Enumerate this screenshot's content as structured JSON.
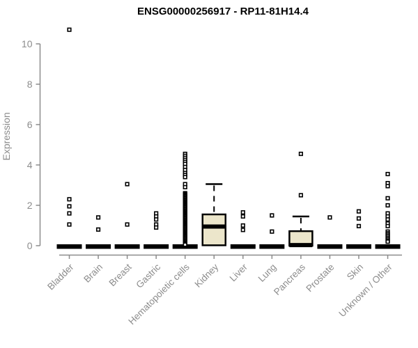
{
  "chart_data": {
    "type": "boxplot",
    "title": "ENSG00000256917 - RP11-81H14.4",
    "ylabel": "Expression",
    "xlabel": "",
    "ylim": [
      0,
      10
    ],
    "yticks": [
      0,
      2,
      4,
      6,
      8,
      10
    ],
    "grid": false,
    "legend": "none",
    "colors": {
      "box_fill": "#ece6cb",
      "box_stroke": "#000000",
      "median": "#000000",
      "outlier_stroke": "#000000",
      "outlier_fill": "#ffffff",
      "axis": "#8c8c8c",
      "tick_label": "#8c8c8c",
      "title": "#000000",
      "background": "#ffffff"
    },
    "categories": [
      "Bladder",
      "Brain",
      "Breast",
      "Gastric",
      "Hematopoietic cells",
      "Kidney",
      "Liver",
      "Lung",
      "Pancreas",
      "Prostate",
      "Skin",
      "Unknown / Other"
    ],
    "series": [
      {
        "category": "Bladder",
        "box": {
          "q1": 0,
          "median": 0,
          "q3": 0
        },
        "outliers": [
          10.7,
          2.3,
          1.95,
          1.6,
          1.05
        ]
      },
      {
        "category": "Brain",
        "box": {
          "q1": 0,
          "median": 0,
          "q3": 0
        },
        "outliers": [
          1.4,
          0.8
        ]
      },
      {
        "category": "Breast",
        "box": {
          "q1": 0,
          "median": 0,
          "q3": 0
        },
        "outliers": [
          3.05,
          1.05
        ]
      },
      {
        "category": "Gastric",
        "box": {
          "q1": 0,
          "median": 0,
          "q3": 0
        },
        "outliers": [
          1.6,
          1.45,
          1.3,
          1.05,
          0.9
        ]
      },
      {
        "category": "Hematopoietic cells",
        "box": {
          "q1": 0,
          "median": 0,
          "q3": 0
        },
        "outliers": [
          4.55,
          4.45,
          4.35,
          4.25,
          4.15,
          4.05,
          3.9,
          3.75,
          3.6,
          3.5,
          3.4,
          3.05,
          2.9,
          2.6,
          2.55,
          2.5,
          2.45,
          2.4,
          2.35,
          2.3,
          2.25,
          2.2,
          2.15,
          2.1,
          2.05,
          2.0,
          1.95,
          1.9,
          1.85,
          1.8,
          1.75,
          1.7,
          1.65,
          1.6,
          1.55,
          1.5,
          1.45,
          1.4,
          1.35,
          1.3,
          1.25,
          1.2,
          1.15,
          1.1,
          1.05,
          1.0,
          0.95,
          0.9,
          0.85,
          0.8,
          0.75,
          0.7,
          0.65,
          0.6,
          0.55,
          0.5,
          0.45,
          0.4,
          0.35,
          0.3,
          0.25,
          0.2,
          0.15,
          0.1,
          0.05
        ]
      },
      {
        "category": "Kidney",
        "box": {
          "q1": 0.02,
          "median": 0.95,
          "q3": 1.55,
          "whisker_high": 3.05
        },
        "outliers": []
      },
      {
        "category": "Liver",
        "box": {
          "q1": 0,
          "median": 0,
          "q3": 0
        },
        "outliers": [
          1.65,
          1.45,
          1.0,
          0.78
        ]
      },
      {
        "category": "Lung",
        "box": {
          "q1": 0,
          "median": 0,
          "q3": 0
        },
        "outliers": [
          1.5,
          0.7
        ]
      },
      {
        "category": "Pancreas",
        "box": {
          "q1": 0,
          "median": 0.03,
          "q3": 0.72,
          "whisker_high": 1.45
        },
        "outliers": [
          4.55,
          2.5
        ]
      },
      {
        "category": "Prostate",
        "box": {
          "q1": 0,
          "median": 0,
          "q3": 0
        },
        "outliers": [
          1.4
        ]
      },
      {
        "category": "Skin",
        "box": {
          "q1": 0,
          "median": 0,
          "q3": 0
        },
        "outliers": [
          1.7,
          1.35,
          0.97
        ]
      },
      {
        "category": "Unknown / Other",
        "box": {
          "q1": 0,
          "median": 0,
          "q3": 0
        },
        "outliers": [
          3.55,
          3.1,
          2.95,
          2.35,
          2.0,
          1.6,
          1.45,
          1.3,
          1.1,
          0.97,
          0.7,
          0.62,
          0.55,
          0.48,
          0.4,
          0.33,
          0.26,
          0.2
        ]
      }
    ]
  }
}
